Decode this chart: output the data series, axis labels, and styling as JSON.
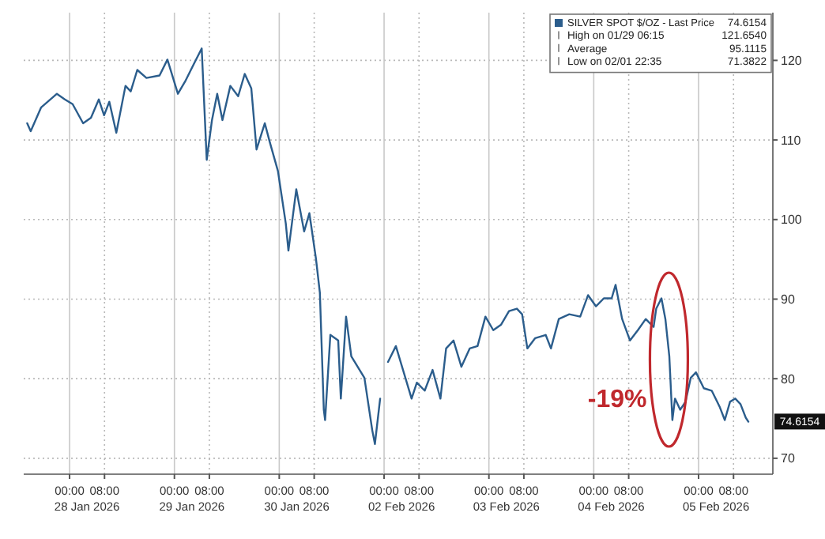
{
  "chart_data": [
    {
      "type": "line",
      "x": [
        "2026-01-27T14:18",
        "2026-01-27T15:06",
        "2026-01-27T17:30",
        "2026-01-27T21:06",
        "2026-01-27T22:54",
        "2026-01-28T00:42",
        "2026-01-28T03:06",
        "2026-01-28T04:54",
        "2026-01-28T06:42",
        "2026-01-28T07:54",
        "2026-01-28T09:06",
        "2026-01-28T10:42",
        "2026-01-28T12:48",
        "2026-01-28T14:00",
        "2026-01-28T15:30",
        "2026-01-28T17:36",
        "2026-01-28T20:36",
        "2026-01-28T22:24",
        "2026-01-29T00:48",
        "2026-01-29T02:36",
        "2026-01-29T04:24",
        "2026-01-29T06:15",
        "2026-01-29T07:24",
        "2026-01-29T08:36",
        "2026-01-29T09:48",
        "2026-01-29T11:00",
        "2026-01-29T12:48",
        "2026-01-29T14:36",
        "2026-01-29T16:06",
        "2026-01-29T17:36",
        "2026-01-29T18:48",
        "2026-01-29T20:42",
        "2026-01-29T21:48",
        "2026-01-29T23:42",
        "2026-01-30T01:30",
        "2026-01-30T02:06",
        "2026-01-30T03:54",
        "2026-01-30T05:42",
        "2026-01-30T06:54",
        "2026-01-30T08:24",
        "2026-01-30T09:18",
        "2026-01-30T10:12",
        "2026-01-30T10:30",
        "2026-01-30T11:42",
        "2026-01-30T13:30",
        "2026-01-30T14:06",
        "2026-01-30T15:18",
        "2026-01-30T16:30",
        "2026-01-30T19:30",
        "2026-01-30T21:18",
        "2026-01-30T21:54",
        "2026-01-30T23:06"
      ],
      "series": [
        {
          "color": "#2b5d8c",
          "values": [
            112.1,
            111.1,
            114.1,
            115.8,
            115.1,
            114.5,
            112.1,
            112.8,
            115.1,
            113.1,
            114.8,
            110.9,
            116.8,
            116.1,
            118.8,
            117.8,
            118.1,
            120.1,
            115.8,
            117.5,
            119.5,
            121.5,
            107.5,
            112.5,
            115.8,
            112.5,
            116.8,
            115.5,
            118.3,
            116.5,
            108.8,
            112.1,
            109.8,
            106.1,
            99.5,
            96.1,
            103.8,
            98.5,
            100.8,
            95.1,
            90.8,
            76.1,
            74.8,
            85.5,
            84.8,
            77.5,
            87.8,
            82.8,
            80.1,
            73.5,
            71.8,
            77.5
          ]
        }
      ],
      "xlim": [
        "2026-01-27T13:30",
        "2026-01-31T00:00"
      ],
      "xticks": [
        {
          "value": "2026-01-28T00:00",
          "label": "00:00"
        },
        {
          "value": "2026-01-28T08:00",
          "label": "08:00"
        },
        {
          "value": "2026-01-29T00:00",
          "label": "00:00"
        },
        {
          "value": "2026-01-29T08:00",
          "label": "08:00"
        },
        {
          "value": "2026-01-30T00:00",
          "label": "00:00"
        },
        {
          "value": "2026-01-30T08:00",
          "label": "08:00"
        }
      ],
      "x2lim": [
        "2026-01-27T13:30",
        "2026-01-31T00:00"
      ],
      "x2ticks": [
        {
          "value": "2026-01-28T04:00",
          "label": "28 Jan 2026"
        },
        {
          "value": "2026-01-29T04:00",
          "label": "29 Jan 2026"
        },
        {
          "value": "2026-01-30T04:00",
          "label": "30 Jan 2026"
        }
      ],
      "ylim": [
        68,
        126
      ],
      "yticks": [
        70,
        80,
        90,
        100,
        110,
        120
      ],
      "tick_labels": "x",
      "grid": true
    },
    {
      "type": "line",
      "x": [
        "2026-02-02T00:54",
        "2026-02-02T02:42",
        "2026-02-02T04:30",
        "2026-02-02T06:18",
        "2026-02-02T07:30",
        "2026-02-02T09:18",
        "2026-02-02T11:06",
        "2026-02-02T12:54",
        "2026-02-02T14:12",
        "2026-02-02T15:54",
        "2026-02-02T17:42",
        "2026-02-02T19:36",
        "2026-02-02T21:24",
        "2026-02-02T23:12",
        "2026-02-03T01:00",
        "2026-02-03T02:48",
        "2026-02-03T04:36",
        "2026-02-03T06:24",
        "2026-02-03T07:36",
        "2026-02-03T08:48",
        "2026-02-03T10:36",
        "2026-02-03T13:00",
        "2026-02-03T14:12",
        "2026-02-03T16:00",
        "2026-02-03T18:24",
        "2026-02-03T20:54",
        "2026-02-03T22:42",
        "2026-02-04T00:30",
        "2026-02-04T02:18",
        "2026-02-04T04:06",
        "2026-02-04T05:00",
        "2026-02-04T06:30",
        "2026-02-04T08:18",
        "2026-02-04T10:06",
        "2026-02-04T11:54",
        "2026-02-04T13:42",
        "2026-02-04T14:18",
        "2026-02-04T15:30",
        "2026-02-04T16:24",
        "2026-02-04T17:18",
        "2026-02-04T18:00",
        "2026-02-04T18:36",
        "2026-02-04T19:48",
        "2026-02-04T21:00",
        "2026-02-04T22:12",
        "2026-02-04T23:24",
        "2026-02-05T01:12",
        "2026-02-05T03:00",
        "2026-02-05T04:48",
        "2026-02-05T06:00",
        "2026-02-05T07:12",
        "2026-02-05T08:24",
        "2026-02-05T09:36",
        "2026-02-05T10:48",
        "2026-02-05T11:24"
      ],
      "series": [
        {
          "name": "SILVER SPOT $/OZ - Last Price",
          "color": "#2b5d8c",
          "values": [
            82.1,
            84.1,
            80.8,
            77.5,
            79.5,
            78.5,
            81.1,
            77.5,
            83.8,
            84.8,
            81.5,
            83.8,
            84.1,
            87.8,
            86.1,
            86.8,
            88.5,
            88.8,
            88.1,
            83.8,
            85.1,
            85.5,
            83.8,
            87.5,
            88.1,
            87.8,
            90.5,
            89.1,
            90.1,
            90.1,
            91.8,
            87.5,
            84.8,
            86.1,
            87.5,
            86.5,
            88.8,
            90.1,
            87.5,
            82.8,
            74.8,
            77.5,
            76.1,
            77.1,
            80.1,
            80.8,
            78.8,
            78.5,
            76.5,
            74.8,
            77.1,
            77.5,
            76.8,
            75.1,
            74.6
          ]
        }
      ],
      "xlim": [
        "2026-02-02T00:00",
        "2026-02-05T17:00"
      ],
      "xticks": [
        {
          "value": "2026-02-02T00:00",
          "label": "00:00"
        },
        {
          "value": "2026-02-02T08:00",
          "label": "08:00"
        },
        {
          "value": "2026-02-03T00:00",
          "label": "00:00"
        },
        {
          "value": "2026-02-03T08:00",
          "label": "08:00"
        },
        {
          "value": "2026-02-04T00:00",
          "label": "00:00"
        },
        {
          "value": "2026-02-04T08:00",
          "label": "08:00"
        },
        {
          "value": "2026-02-05T00:00",
          "label": "00:00"
        },
        {
          "value": "2026-02-05T08:00",
          "label": "08:00"
        }
      ],
      "x2lim": [
        "2026-02-02T00:00",
        "2026-02-05T17:00"
      ],
      "x2ticks": [
        {
          "value": "2026-02-02T04:00",
          "label": "02 Feb 2026"
        },
        {
          "value": "2026-02-03T04:00",
          "label": "03 Feb 2026"
        },
        {
          "value": "2026-02-04T04:00",
          "label": "04 Feb 2026"
        },
        {
          "value": "2026-02-05T04:00",
          "label": "05 Feb 2026"
        }
      ],
      "ylim": [
        68,
        126
      ],
      "yticks": [
        70,
        80,
        90,
        100,
        110,
        120
      ],
      "grid": true,
      "legend": "top right",
      "annotations": [
        "74.6154",
        "High on 01/29 06:15",
        "121.6540",
        "Average",
        "95.1115",
        "Low on 02/01 22:35",
        "71.3822",
        {
          "text": "74.6154",
          "x": "2026-02-05T11:24",
          "y": 74.6154
        },
        {
          "text": "-19%",
          "x": "2026-02-04T17:12",
          "y": 82.4
        }
      ]
    }
  ]
}
